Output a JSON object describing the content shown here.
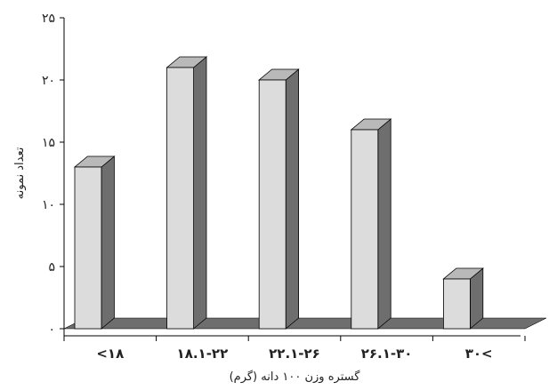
{
  "chart_data": {
    "type": "bar",
    "categories": [
      "<۱۸",
      "۱۸.۱-۲۲",
      "۲۲.۱-۲۶",
      "۲۶.۱-۳۰",
      "۳۰<"
    ],
    "values": [
      13,
      21,
      20,
      16,
      4
    ],
    "xlabel": "گستره وزن ۱۰۰ دانه (گرم)",
    "ylabel": "تعداد نمونه",
    "ylim": [
      0,
      25
    ],
    "yticks": [
      0,
      5,
      10,
      15,
      20,
      25
    ],
    "ytick_labels": [
      "۰",
      "۵",
      "۱۰",
      "۱۵",
      "۲۰",
      "۲۵"
    ],
    "grid": false,
    "legend": "none",
    "style": "3d",
    "colors": {
      "bar_front": "#dcdcdc",
      "bar_side": "#6e6e6e",
      "bar_top": "#b9b9b9",
      "floor": "#6e6e6e",
      "axis": "#000000"
    }
  }
}
